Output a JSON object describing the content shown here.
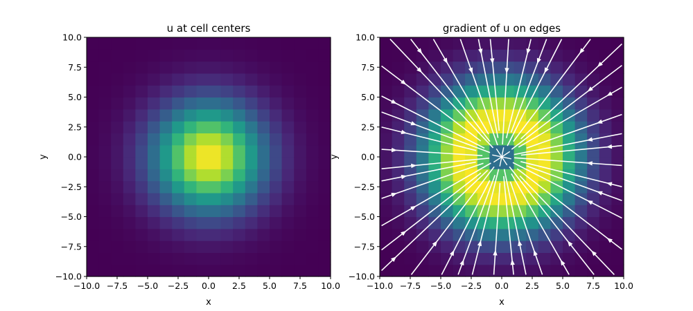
{
  "chart_data": [
    {
      "type": "heatmap",
      "title": "u at cell centers",
      "xlabel": "x",
      "ylabel": "y",
      "xlim": [
        -10,
        10
      ],
      "ylim": [
        -10,
        10
      ],
      "grid": false,
      "colormap": "viridis",
      "cells_per_axis": 20,
      "field": "exp(-(x^2 + y^2)/20) sampled at cell centers",
      "value_range": [
        0,
        1
      ],
      "x_ticks": [
        "−10.0",
        "−7.5",
        "−5.0",
        "−2.5",
        "0.0",
        "2.5",
        "5.0",
        "7.5",
        "10.0"
      ],
      "y_ticks": [
        "−10.0",
        "−7.5",
        "−5.0",
        "−2.5",
        "0.0",
        "2.5",
        "5.0",
        "7.5",
        "10.0"
      ]
    },
    {
      "type": "heatmap",
      "title": "gradient of u on edges",
      "xlabel": "x",
      "ylabel": "y",
      "xlim": [
        -10,
        10
      ],
      "ylim": [
        -10,
        10
      ],
      "grid": false,
      "colormap": "viridis",
      "cells_per_axis": 20,
      "field": "gradient magnitude of u, peak ring near r = 3, minimum at center",
      "overlay": "white streamlines converging toward the center (0, 0)",
      "x_ticks": [
        "−10.0",
        "−7.5",
        "−5.0",
        "−2.5",
        "0.0",
        "2.5",
        "5.0",
        "7.5",
        "10.0"
      ],
      "y_ticks": [
        "−10.0",
        "−7.5",
        "−5.0",
        "−2.5",
        "0.0",
        "2.5",
        "5.0",
        "7.5",
        "10.0"
      ]
    }
  ],
  "colors": {
    "streamline": "#ffffff",
    "axis": "#000000",
    "background": "#ffffff"
  }
}
